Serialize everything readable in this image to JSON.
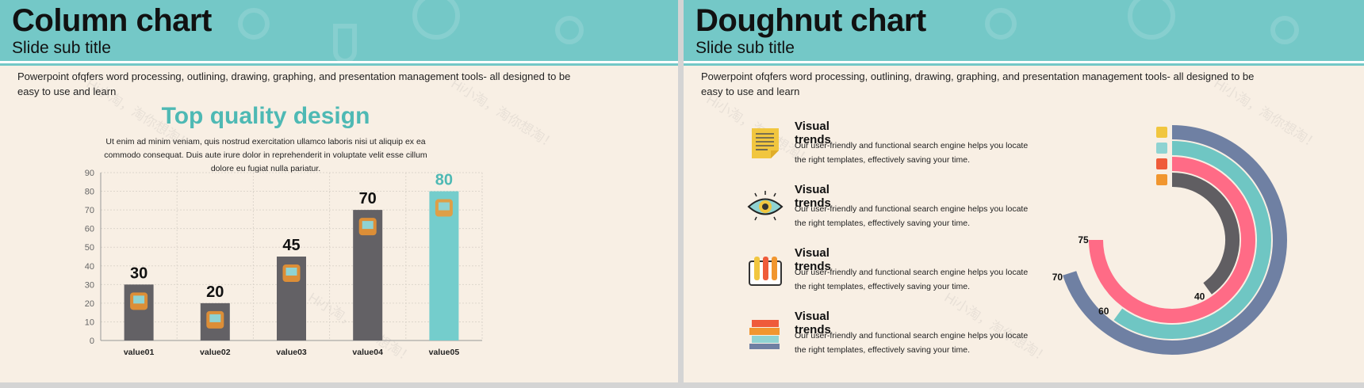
{
  "watermark": "Hi小淘，淘你想淘！",
  "left_slide": {
    "title": "Column chart",
    "subtitle": "Slide sub title",
    "body": "Powerpoint  ofqfers word processing, outlining, drawing, graphing, and presentation management tools- all designed to be easy to use and learn",
    "heading": "Top quality design",
    "lorem": "Ut enim ad minim veniam, quis nostrud exercitation ullamco laboris nisi ut aliquip ex ea commodo consequat. Duis aute irure dolor in reprehenderit in voluptate velit esse cillum dolore eu fugiat nulla pariatur."
  },
  "right_slide": {
    "title": "Doughnut chart",
    "subtitle": "Slide sub title",
    "body": "Powerpoint  ofqfers word processing, outlining, drawing, graphing, and presentation management tools- all designed to be easy to use and learn",
    "items": [
      {
        "title": "Visual trends",
        "desc": "Our user-friendly and functional search engine helps you locate the  right templates, effectively saving your time.",
        "icon": "document-icon"
      },
      {
        "title": "Visual trends",
        "desc": "Our user-friendly and functional search engine helps you locate the  right templates, effectively saving your time.",
        "icon": "eye-icon"
      },
      {
        "title": "Visual trends",
        "desc": "Our user-friendly and functional search engine helps you locate the  right templates, effectively saving your time.",
        "icon": "test-tubes-icon"
      },
      {
        "title": "Visual trends",
        "desc": "Our user-friendly and functional search engine helps you locate the  right templates, effectively saving your time.",
        "icon": "books-icon"
      }
    ]
  },
  "chart_data": [
    {
      "type": "bar",
      "title": "Top quality design",
      "categories": [
        "value01",
        "value02",
        "value03",
        "value04",
        "value05"
      ],
      "values": [
        30,
        20,
        45,
        70,
        80
      ],
      "data_labels": [
        "30",
        "20",
        "45",
        "70",
        "80"
      ],
      "icons": [
        "microscope-icon",
        "dna-icon",
        "computer-icon",
        "flask-icon",
        "test-tubes-icon"
      ],
      "colors": [
        "#636165",
        "#636165",
        "#636165",
        "#636165",
        "#74cdcc"
      ],
      "label_colors": [
        "#111111",
        "#111111",
        "#111111",
        "#111111",
        "#4eb9b4"
      ],
      "ylim": [
        0,
        90
      ],
      "yticks": [
        "0",
        "10",
        "20",
        "30",
        "40",
        "50",
        "60",
        "70",
        "80",
        "90"
      ],
      "grid": true
    },
    {
      "type": "pie",
      "subtype": "radial-doughnut",
      "max": 100,
      "series": [
        {
          "name": "document",
          "value": 70,
          "label": "70",
          "color": "#6f80a3"
        },
        {
          "name": "eye",
          "value": 60,
          "label": "60",
          "color": "#6fc6c3"
        },
        {
          "name": "test tubes",
          "value": 75,
          "label": "75",
          "color": "#ff6b86"
        },
        {
          "name": "books",
          "value": 40,
          "label": "40",
          "color": "#605e62"
        }
      ]
    }
  ]
}
